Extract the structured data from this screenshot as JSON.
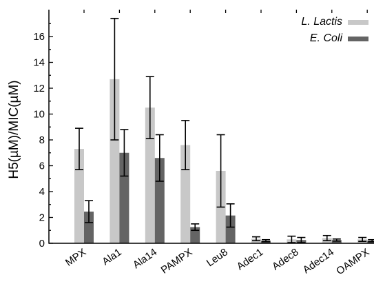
{
  "chart_data": {
    "type": "bar",
    "title": "",
    "xlabel": "",
    "ylabel": "H5(µM)/MIC(µM)",
    "ylim": [
      0,
      18
    ],
    "yticks": [
      0,
      2,
      4,
      6,
      8,
      10,
      12,
      14,
      16
    ],
    "grid": false,
    "legend_position": "top-right",
    "categories": [
      "MPX",
      "Ala1",
      "Ala14",
      "PAMPX",
      "Leu8",
      "Adec1",
      "Adec8",
      "Adec14",
      "OAMPX"
    ],
    "series": [
      {
        "name": "L. Lactis",
        "color": "#c8c8c8",
        "values": [
          7.3,
          12.7,
          10.5,
          7.6,
          5.6,
          0.35,
          0.3,
          0.4,
          0.3
        ],
        "error": [
          1.6,
          4.7,
          2.4,
          1.9,
          2.8,
          0.15,
          0.25,
          0.2,
          0.15
        ]
      },
      {
        "name": "E. Coli",
        "color": "#646464",
        "values": [
          2.45,
          7.0,
          6.6,
          1.25,
          2.15,
          0.2,
          0.25,
          0.25,
          0.2
        ],
        "error": [
          0.85,
          1.8,
          1.8,
          0.25,
          0.9,
          0.08,
          0.2,
          0.08,
          0.08
        ]
      }
    ]
  }
}
